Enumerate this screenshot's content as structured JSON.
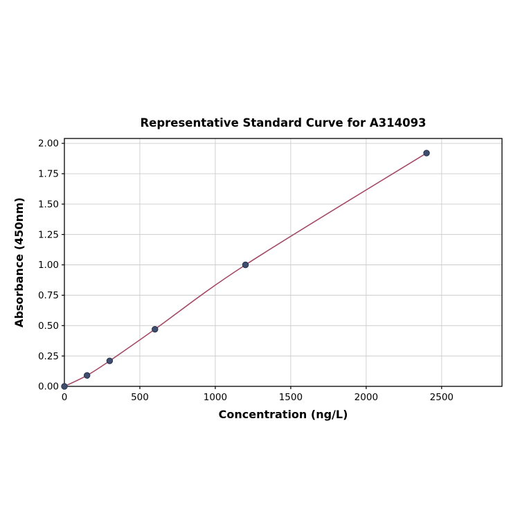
{
  "page": {
    "background": "#ffffff"
  },
  "chart_data": {
    "type": "line",
    "title": "Representative Standard Curve for A314093",
    "xlabel": "Concentration (ng/L)",
    "ylabel": "Absorbance (450nm)",
    "x": [
      0,
      150,
      300,
      600,
      1200,
      2400
    ],
    "y": [
      0.0,
      0.09,
      0.21,
      0.47,
      1.0,
      1.92
    ],
    "xlim": [
      0,
      2900
    ],
    "ylim": [
      0,
      2.04
    ],
    "xticks": [
      0,
      500,
      1000,
      1500,
      2000,
      2500
    ],
    "xtick_labels": [
      "0",
      "500",
      "1000",
      "1500",
      "2000",
      "2500"
    ],
    "yticks": [
      0,
      0.25,
      0.5,
      0.75,
      1.0,
      1.25,
      1.5,
      1.75,
      2.0
    ],
    "ytick_labels": [
      "0.00",
      "0.25",
      "0.50",
      "0.75",
      "1.00",
      "1.25",
      "1.50",
      "1.75",
      "2.00"
    ],
    "grid": true,
    "legend": "none",
    "line_color": "#a34a67",
    "marker_color": "#3f4e6e",
    "marker_edge_color": "#27324d",
    "grid_color": "#cccccc",
    "spine_color": "#000000"
  }
}
